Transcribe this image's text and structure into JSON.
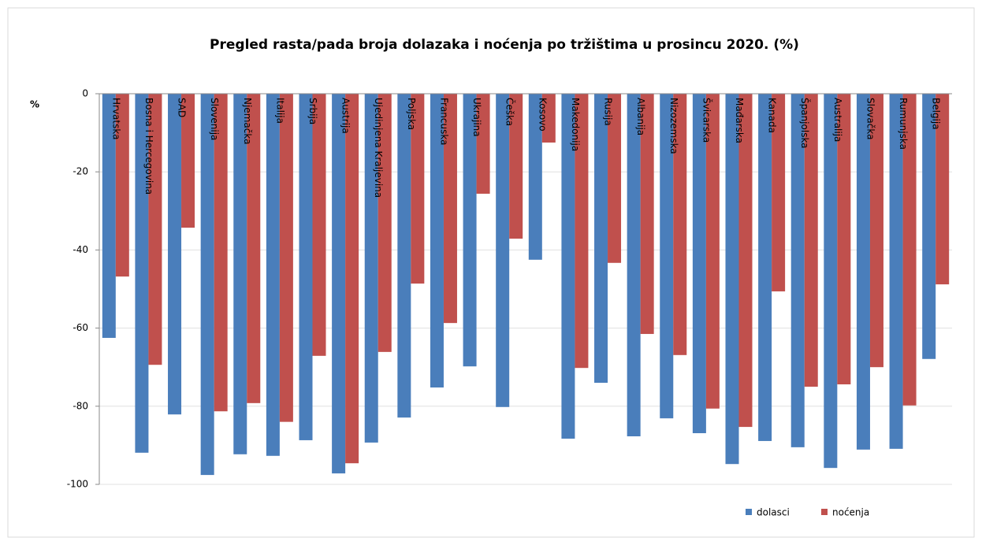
{
  "chart_data": {
    "type": "bar",
    "title": "Pregled rasta/pada broja dolazaka i noćenja po tržištima u prosincu 2020. (%)",
    "y_label": "%",
    "categories": [
      "Hrvatska",
      "Bosna i Hercegovina",
      "SAD",
      "Slovenija",
      "Njemačka",
      "Italija",
      "Srbija",
      "Austrija",
      "Ujedinjena Kraljevina",
      "Poljska",
      "Francuska",
      "Ukrajina",
      "Češka",
      "Kosovo",
      "Makedonija",
      "Rusija",
      "Albanija",
      "Nizozemska",
      "Švicarska",
      "Mađarska",
      "Kanada",
      "Španjolska",
      "Australija",
      "Slovačka",
      "Rumunjska",
      "Belgija"
    ],
    "series": [
      {
        "name": "dolasci",
        "color": "#4a7ebb",
        "values": [
          -62.5,
          -91.9,
          -82.1,
          -97.6,
          -92.3,
          -92.7,
          -88.7,
          -97.2,
          -89.3,
          -82.9,
          -75.2,
          -69.8,
          -80.2,
          -42.5,
          -88.3,
          -74.0,
          -87.7,
          -83.1,
          -86.9,
          -94.8,
          -88.9,
          -90.5,
          -95.8,
          -91.1,
          -90.9,
          -67.9
        ]
      },
      {
        "name": "noćenja",
        "color": "#c0504d",
        "values": [
          -46.8,
          -69.4,
          -34.3,
          -81.3,
          -79.2,
          -84.0,
          -67.1,
          -94.6,
          -66.1,
          -48.6,
          -58.7,
          -25.6,
          -37.1,
          -12.5,
          -70.2,
          -43.3,
          -61.5,
          -66.9,
          -80.6,
          -85.3,
          -50.6,
          -75.0,
          -74.4,
          -70.0,
          -79.8,
          -48.8
        ]
      }
    ],
    "ylim": [
      -100,
      0
    ],
    "yticks": [
      0,
      -20,
      -40,
      -60,
      -80,
      -100
    ],
    "grid": true,
    "legend": "bottom-right"
  }
}
